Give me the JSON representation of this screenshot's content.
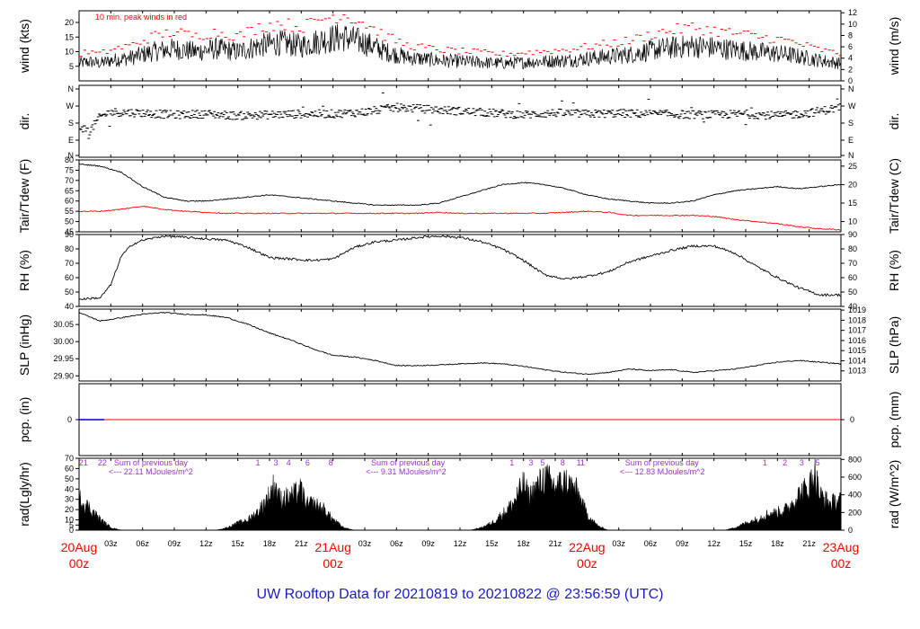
{
  "title": "UW Rooftop Data for 20210819  to  20210822 @ 23:56:59  (UTC)",
  "colors": {
    "title": "#1a1acc",
    "peak": "#ff0000",
    "dew": "#ff0000",
    "pcp": "#ff0000",
    "pcp_obs": "#0000cc",
    "rad_ann": "#9932cc",
    "date": "#ff0000",
    "data": "#000000"
  },
  "chart_data": [
    {
      "type": "line",
      "name": "wind",
      "ylabel_left": "wind (kts)",
      "ylabel_right": "wind (m/s)",
      "yticks_left": [
        "5",
        "10",
        "15",
        "20"
      ],
      "ylim_left": [
        0,
        24
      ],
      "yticks_right": [
        "0",
        "2",
        "4",
        "6",
        "8",
        "10",
        "12"
      ],
      "ylim_right": [
        0,
        12.35
      ],
      "annotation": "10 min. peak winds in red",
      "x_hours": [
        0,
        1,
        2,
        3,
        5,
        7,
        9,
        11,
        13,
        15,
        17,
        19,
        21,
        23,
        25,
        27,
        29,
        31,
        34,
        37,
        40,
        43,
        46,
        49,
        52,
        55,
        58,
        61,
        64,
        67,
        70,
        72
      ],
      "y": [
        6,
        6.5,
        6,
        7,
        8,
        10,
        11,
        10,
        11,
        10,
        12,
        13,
        12,
        14,
        15,
        13,
        10,
        8,
        7,
        6.5,
        6,
        6.5,
        7,
        8,
        9,
        11,
        12,
        11,
        10,
        9,
        7,
        6
      ]
    },
    {
      "type": "scatter",
      "name": "dir",
      "ylabel_left": "dir.",
      "ylabel_right": "dir.",
      "yticks": [
        "N",
        "W",
        "S",
        "E",
        "N"
      ],
      "ylim": [
        0,
        360
      ],
      "x_hours": [
        0,
        1,
        2,
        3,
        6,
        9,
        12,
        15,
        18,
        21,
        24,
        27,
        30,
        33,
        36,
        39,
        42,
        45,
        48,
        51,
        54,
        57,
        60,
        63,
        66,
        69,
        72
      ],
      "y": [
        160,
        130,
        210,
        235,
        230,
        220,
        225,
        215,
        220,
        225,
        225,
        235,
        260,
        250,
        240,
        230,
        220,
        230,
        225,
        228,
        225,
        222,
        220,
        225,
        215,
        230,
        260
      ]
    },
    {
      "type": "line",
      "name": "temperature",
      "ylabel_left": "Tair/Tdew (F)",
      "ylabel_right": "Tair/Tdew (C)",
      "yticks_left": [
        "45",
        "50",
        "55",
        "60",
        "65",
        "70",
        "75",
        "80"
      ],
      "ylim_left": [
        45,
        80
      ],
      "yticks_right": [
        "10",
        "15",
        "20",
        "25"
      ],
      "ylim_right": [
        7.22,
        26.67
      ],
      "series": [
        {
          "name": "Tair",
          "x_hours": [
            0,
            2,
            4,
            6,
            8,
            10,
            12,
            14,
            16,
            18,
            20,
            22,
            24,
            26,
            28,
            30,
            32,
            34,
            36,
            38,
            40,
            42,
            44,
            46,
            48,
            50,
            52,
            54,
            56,
            58,
            60,
            62,
            64,
            66,
            68,
            70,
            72
          ],
          "y": [
            78,
            77,
            74,
            67,
            62,
            60,
            60,
            61,
            62,
            63,
            62,
            61,
            60,
            59,
            58,
            58,
            58,
            59,
            62,
            65,
            68,
            69,
            68,
            66,
            63,
            61,
            60,
            59,
            59,
            60,
            63,
            65,
            66,
            67,
            66,
            67,
            68
          ]
        },
        {
          "name": "Tdew",
          "x_hours": [
            0,
            2,
            4,
            6,
            8,
            10,
            12,
            14,
            16,
            18,
            20,
            22,
            24,
            26,
            28,
            30,
            32,
            34,
            36,
            38,
            40,
            42,
            44,
            46,
            48,
            50,
            52,
            54,
            56,
            58,
            60,
            62,
            64,
            66,
            68,
            70,
            72
          ],
          "y": [
            55,
            55,
            56,
            57.5,
            56,
            55,
            54.5,
            54,
            54,
            54,
            54,
            54,
            54,
            54,
            54,
            54,
            54,
            54.5,
            54,
            54,
            54,
            54,
            54,
            54.5,
            55,
            54.5,
            53,
            53,
            53,
            53,
            52.5,
            51,
            50,
            49,
            47.5,
            46.5,
            46
          ]
        }
      ]
    },
    {
      "type": "line",
      "name": "RH",
      "ylabel_left": "RH (%)",
      "ylabel_right": "RH (%)",
      "yticks": [
        "40",
        "50",
        "60",
        "70",
        "80",
        "90"
      ],
      "ylim": [
        40,
        90
      ],
      "x_hours": [
        0,
        2,
        3,
        4,
        5,
        6,
        8,
        10,
        12,
        14,
        16,
        18,
        20,
        22,
        24,
        26,
        28,
        30,
        32,
        34,
        36,
        38,
        40,
        42,
        44,
        46,
        48,
        50,
        52,
        54,
        56,
        58,
        60,
        62,
        64,
        66,
        68,
        70,
        72
      ],
      "y": [
        45,
        46,
        55,
        75,
        83,
        86,
        89,
        88,
        87,
        86,
        81,
        74,
        73,
        72,
        73,
        81,
        85,
        86,
        88,
        89,
        88,
        85,
        80,
        72,
        62,
        59,
        61,
        64,
        71,
        75,
        79,
        82,
        82,
        77,
        68,
        60,
        53,
        48,
        48
      ]
    },
    {
      "type": "line",
      "name": "SLP",
      "ylabel_left": "SLP (inHg)",
      "ylabel_right": "SLP (hPa)",
      "yticks_left": [
        "29.90",
        "29.95",
        "30.00",
        "30.05"
      ],
      "ylim_left": [
        29.885,
        30.095
      ],
      "yticks_right": [
        "1013",
        "1014",
        "1015",
        "1016",
        "1017",
        "1018",
        "1019"
      ],
      "ylim_right": [
        1012.0,
        1019.1
      ],
      "x_hours": [
        0,
        2,
        4,
        6,
        8,
        10,
        12,
        14,
        16,
        18,
        20,
        22,
        24,
        26,
        28,
        30,
        32,
        34,
        36,
        38,
        40,
        42,
        44,
        46,
        48,
        50,
        52,
        54,
        56,
        58,
        60,
        62,
        64,
        66,
        68,
        70,
        72
      ],
      "y": [
        30.085,
        30.06,
        30.07,
        30.08,
        30.085,
        30.08,
        30.078,
        30.07,
        30.05,
        30.025,
        30.005,
        29.98,
        29.96,
        29.955,
        29.945,
        29.93,
        29.93,
        29.932,
        29.935,
        29.938,
        29.935,
        29.928,
        29.918,
        29.91,
        29.905,
        29.91,
        29.92,
        29.915,
        29.918,
        29.91,
        29.915,
        29.92,
        29.93,
        29.94,
        29.945,
        29.94,
        29.935
      ]
    },
    {
      "type": "line",
      "name": "pcp",
      "ylabel_left": "pcp. (in)",
      "ylabel_right": "pcp. (mm)",
      "yticks_left": [
        "0"
      ],
      "yticks_right": [
        "0"
      ],
      "ylim": [
        -1,
        1
      ],
      "x_hours": [
        0,
        72
      ],
      "y": [
        0,
        0
      ]
    },
    {
      "type": "area",
      "name": "radiation",
      "ylabel_left": "rad(Lgly/hr)",
      "ylabel_right": "rad (W/m^2)",
      "yticks_left": [
        "0",
        "5",
        "10",
        "20",
        "30",
        "40",
        "50",
        "60",
        "70"
      ],
      "ylim_left": [
        0,
        70
      ],
      "yticks_right": [
        "0",
        "200",
        "400",
        "600",
        "800"
      ],
      "ylim_right": [
        0,
        813
      ],
      "annotations": [
        {
          "text": "Sum of previous day",
          "hour": 3.3,
          "row": 1
        },
        {
          "text": "<--- 22.11 MJoules/m^2",
          "hour": 2.8,
          "row": 2
        },
        {
          "text": "Sum of previous day",
          "hour": 27.6,
          "row": 1
        },
        {
          "text": "<--- 9.31 MJoules/m^2",
          "hour": 27.1,
          "row": 2
        },
        {
          "text": "Sum of previous day",
          "hour": 51.6,
          "row": 1
        },
        {
          "text": "<--- 12.83 MJoules/m^2",
          "hour": 51.1,
          "row": 2
        }
      ],
      "hour_marks": [
        {
          "text": "21",
          "hour": 0.4
        },
        {
          "text": "22",
          "hour": 2.2
        },
        {
          "text": "1",
          "hour": 16.9
        },
        {
          "text": "3",
          "hour": 18.6
        },
        {
          "text": "4",
          "hour": 19.8
        },
        {
          "text": "6",
          "hour": 21.6
        },
        {
          "text": "8",
          "hour": 23.8
        },
        {
          "text": "1",
          "hour": 40.9
        },
        {
          "text": "3",
          "hour": 42.7
        },
        {
          "text": "5",
          "hour": 43.8
        },
        {
          "text": "8",
          "hour": 45.7
        },
        {
          "text": "11",
          "hour": 47.4
        },
        {
          "text": "1",
          "hour": 64.8
        },
        {
          "text": "2",
          "hour": 66.7
        },
        {
          "text": "3",
          "hour": 68.3
        },
        {
          "text": "5",
          "hour": 69.8
        }
      ],
      "x_hours": [
        0,
        1,
        2,
        3,
        4,
        13,
        14,
        15,
        16,
        17,
        18,
        18.5,
        19,
        20,
        21,
        21.5,
        22,
        23,
        24,
        25,
        26,
        37,
        38,
        39,
        40,
        41,
        42,
        42.5,
        43,
        44,
        45,
        46,
        47,
        48,
        49,
        50,
        61,
        62,
        63,
        64,
        65,
        66,
        67,
        68,
        69,
        69.5,
        70,
        71,
        72
      ],
      "y": [
        36,
        25,
        12,
        3,
        0,
        0,
        3,
        8,
        12,
        22,
        40,
        52,
        35,
        38,
        45,
        28,
        30,
        25,
        12,
        3,
        0,
        0,
        3,
        8,
        18,
        30,
        52,
        38,
        45,
        60,
        50,
        55,
        45,
        18,
        5,
        0,
        0,
        3,
        8,
        12,
        18,
        20,
        25,
        40,
        50,
        68,
        40,
        30,
        35
      ]
    }
  ],
  "x_axis": {
    "hour_ticks": [
      "03z",
      "06z",
      "09z",
      "12z",
      "15z",
      "18z",
      "21z",
      "03z",
      "06z",
      "09z",
      "12z",
      "15z",
      "18z",
      "21z",
      "03z",
      "06z",
      "09z",
      "12z",
      "15z",
      "18z",
      "21z"
    ],
    "hour_tick_positions": [
      3,
      6,
      9,
      12,
      15,
      18,
      21,
      27,
      30,
      33,
      36,
      39,
      42,
      45,
      51,
      54,
      57,
      60,
      63,
      66,
      69
    ],
    "dates": [
      {
        "day": "20Aug",
        "z": "00z",
        "hour": 0
      },
      {
        "day": "21Aug",
        "z": "00z",
        "hour": 24
      },
      {
        "day": "22Aug",
        "z": "00z",
        "hour": 48
      },
      {
        "day": "23Aug",
        "z": "00z",
        "hour": 72
      }
    ]
  }
}
